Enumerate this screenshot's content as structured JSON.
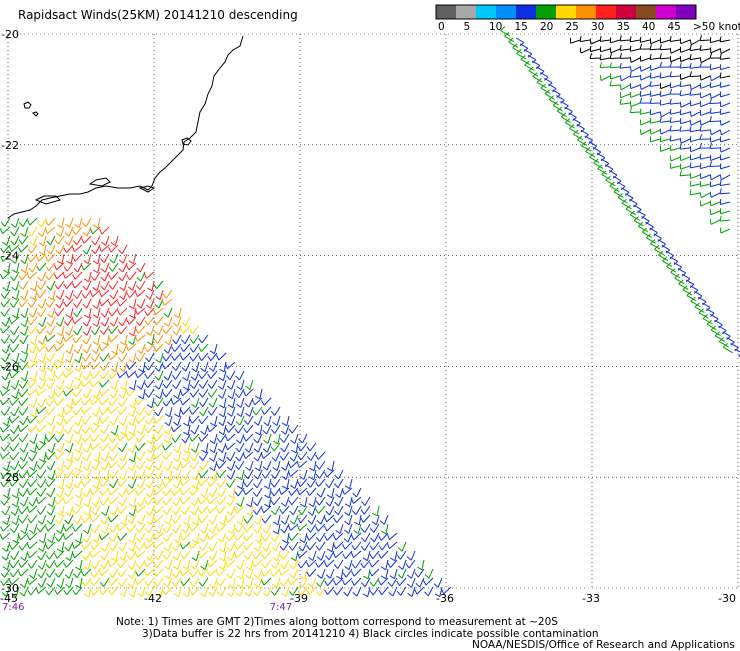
{
  "title": "Rapidsact Winds(25KM) 20141210 descending",
  "legend": {
    "labels": [
      "0",
      "5",
      "10",
      "15",
      "20",
      "25",
      "30",
      "35",
      "40",
      "45",
      ">50 knots"
    ],
    "colors": [
      "#606060",
      "#a8a8a8",
      "#00c8ff",
      "#0090ff",
      "#1030e0",
      "#00a000",
      "#ffd800",
      "#ff9000",
      "#ff2020",
      "#d00040",
      "#8a4a20",
      "#d000d0",
      "#8000c0"
    ]
  },
  "axes": {
    "lat_labels": [
      "-20",
      "-22",
      "-24",
      "-26",
      "-28",
      "-30"
    ],
    "lon_labels": [
      "-45",
      "-42",
      "-39",
      "-36",
      "-33",
      "-30"
    ],
    "lat_values": [
      -20,
      -22,
      -24,
      -26,
      -28,
      -30
    ],
    "lon_values": [
      -45,
      -42,
      -39,
      -36,
      -33,
      -30
    ],
    "lat_range": [
      -30,
      -20
    ],
    "lon_range": [
      -45,
      -30
    ],
    "grid": true
  },
  "times": [
    {
      "label": "7:46",
      "lon": -45
    },
    {
      "label": "7:47",
      "lon": -39.5
    }
  ],
  "notes": {
    "line1": "Note: 1) Times are GMT 2)Times along bottom correspond to measurement at ~20S",
    "line2": "3)Data buffer is 22 hrs from 20141210 4) Black circles indicate possible contamination",
    "credit": "NOAA/NESDIS/Office of Research and Applications"
  },
  "wind_regions": [
    {
      "name": "southwest-swath",
      "speed_classes": [
        "green",
        "yellow",
        "orange",
        "red",
        "blue"
      ]
    },
    {
      "name": "northeast-swath",
      "speed_classes": [
        "black",
        "blue",
        "green"
      ]
    }
  ]
}
